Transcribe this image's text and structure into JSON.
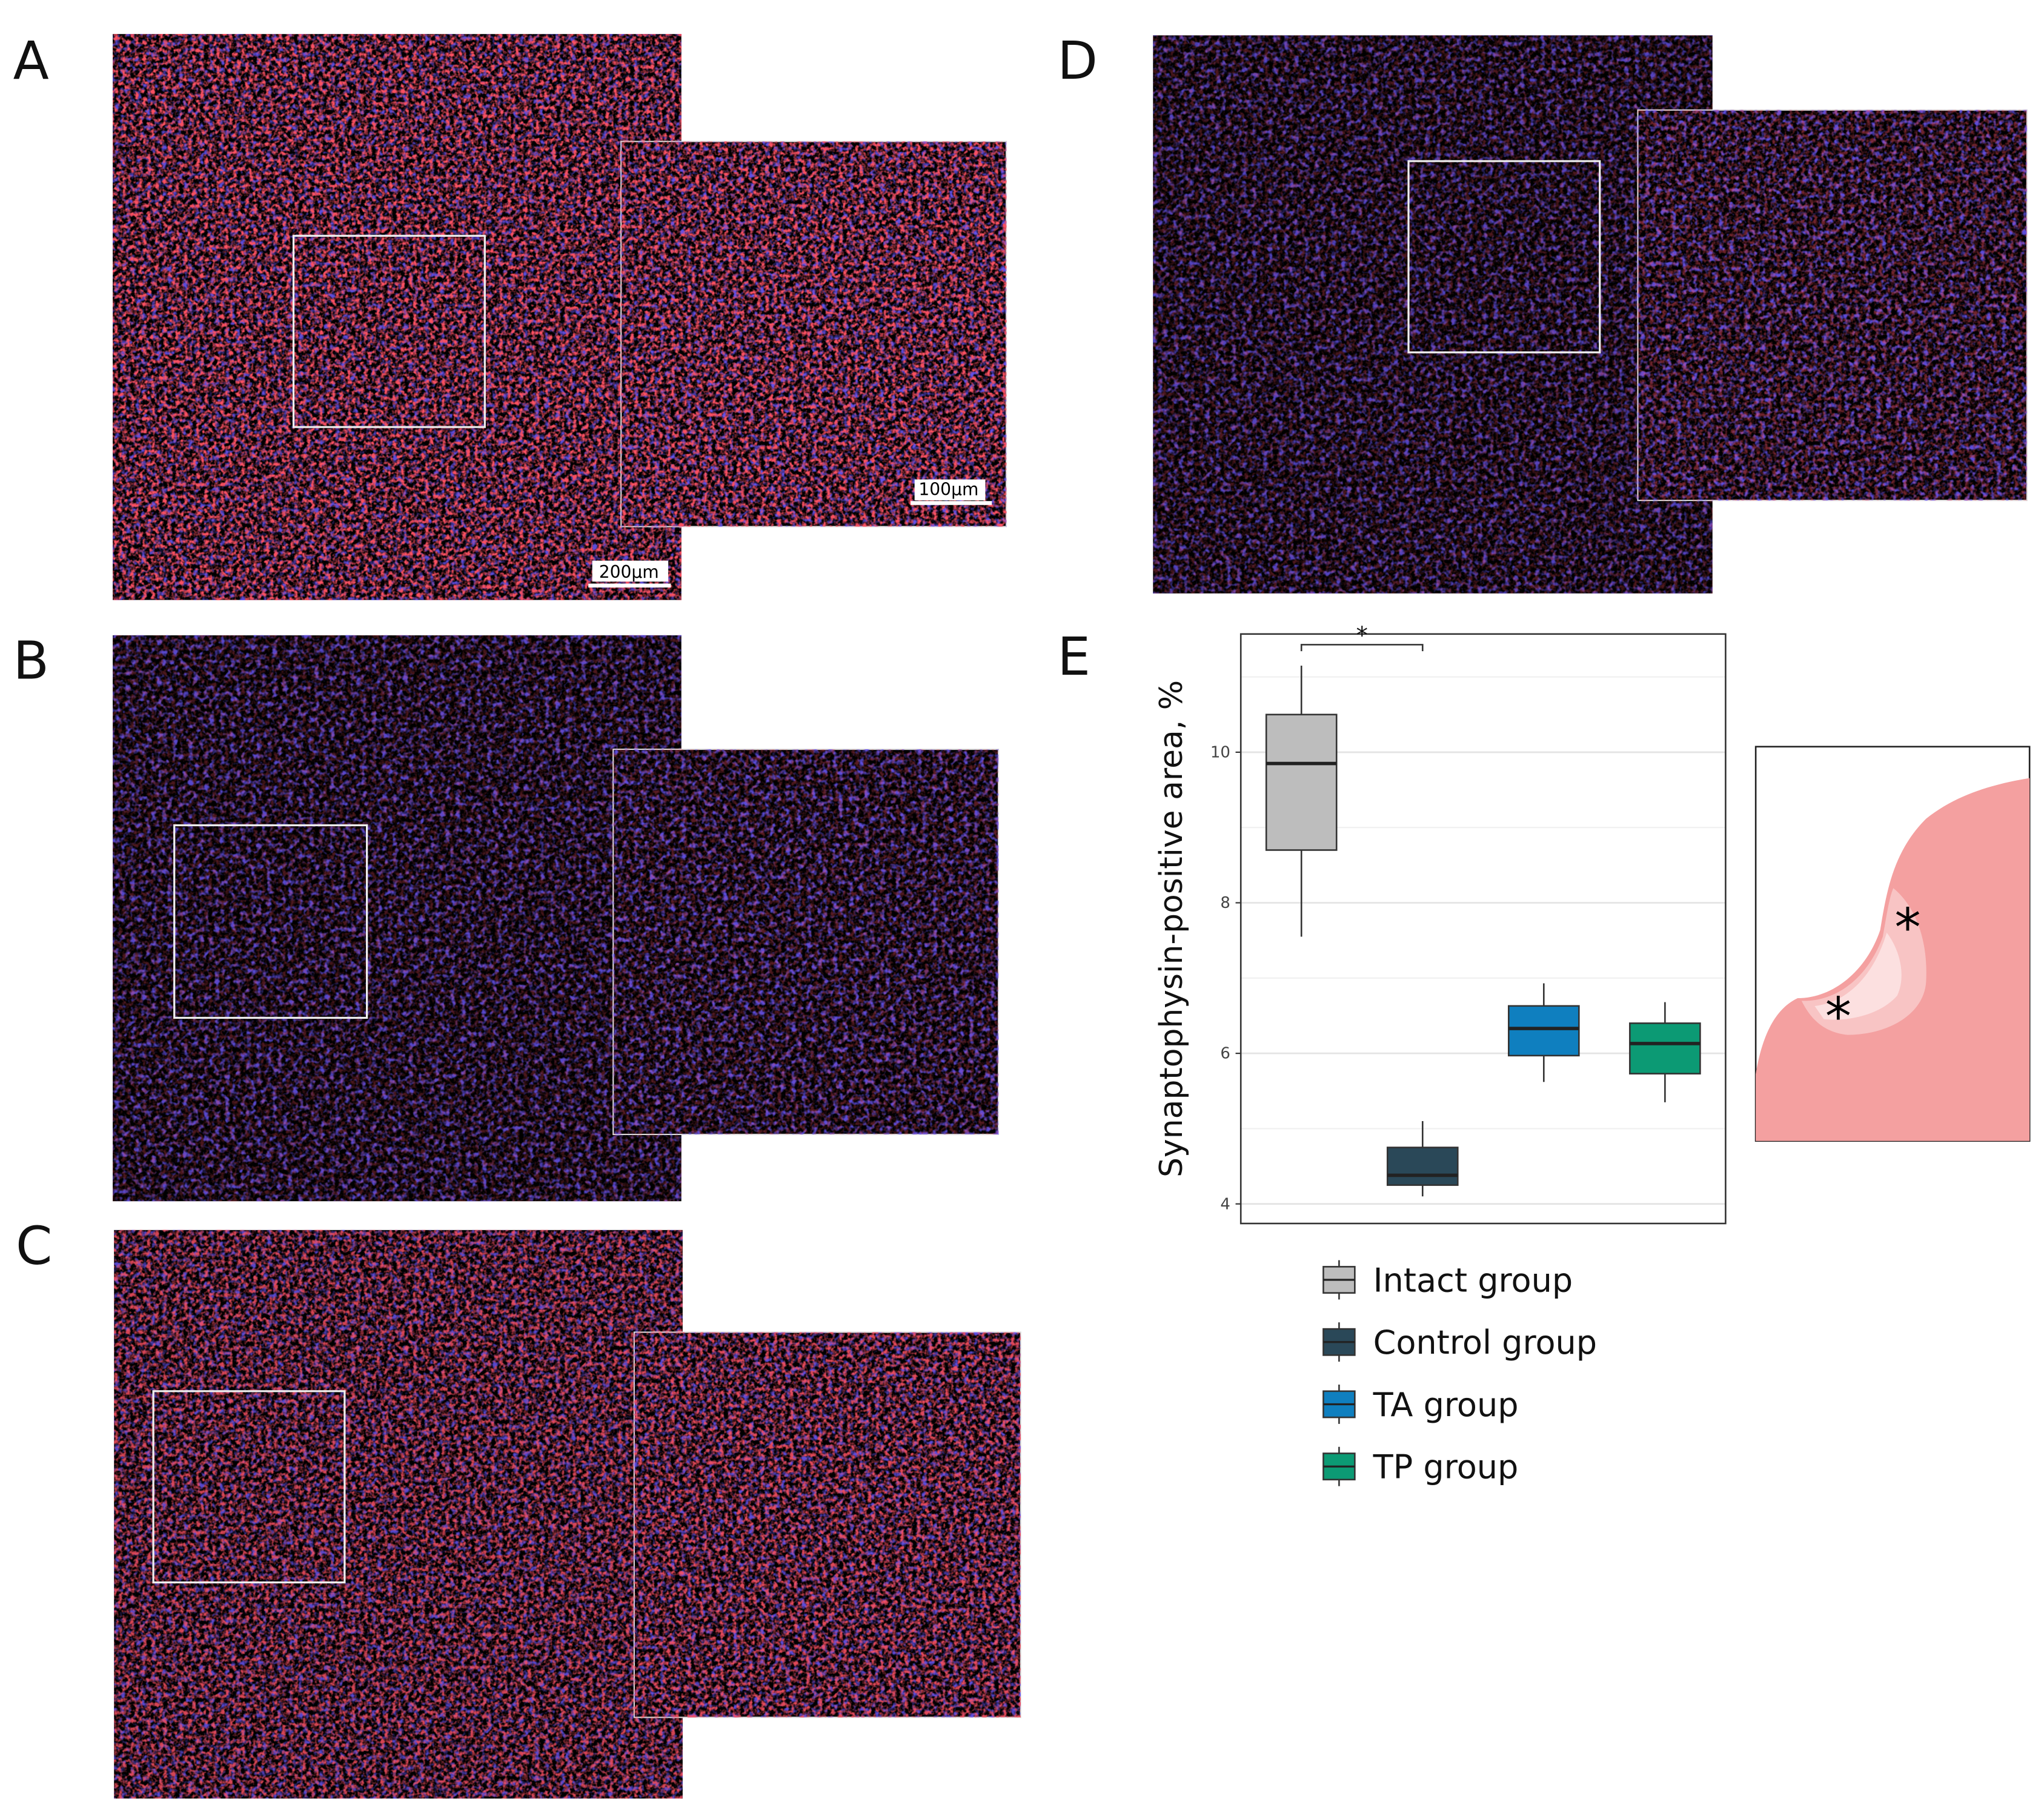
{
  "panels": [
    {
      "label": "A"
    },
    {
      "label": "B"
    },
    {
      "label": "C"
    },
    {
      "label": "D"
    },
    {
      "label": "E"
    }
  ],
  "scale_bars": [
    "200µm",
    "100µm"
  ],
  "chart_data": {
    "type": "box",
    "ylabel": "Synaptophysin-positive area, %",
    "ylim": [
      3.74,
      11.57
    ],
    "yticks": [
      4,
      6,
      8,
      10
    ],
    "grid": true,
    "series": [
      {
        "name": "Intact group",
        "color": "#bdbdbd",
        "whislo": 7.55,
        "q1": 8.7,
        "med": 9.85,
        "q3": 10.5,
        "whishi": 11.15
      },
      {
        "name": "Control group",
        "color": "#2a4858",
        "whislo": 4.1,
        "q1": 4.25,
        "med": 4.38,
        "q3": 4.75,
        "whishi": 5.1
      },
      {
        "name": "TA group",
        "color": "#0f7fbf",
        "whislo": 5.62,
        "q1": 5.97,
        "med": 6.33,
        "q3": 6.63,
        "whishi": 6.93
      },
      {
        "name": "TP group",
        "color": "#0c9a74",
        "whislo": 5.35,
        "q1": 5.73,
        "med": 6.13,
        "q3": 6.4,
        "whishi": 6.68
      }
    ],
    "significance": [
      {
        "groups": [
          "Intact group",
          "Control group"
        ],
        "label": "*"
      }
    ]
  },
  "schematic": {
    "markers": [
      "*",
      "*"
    ]
  }
}
